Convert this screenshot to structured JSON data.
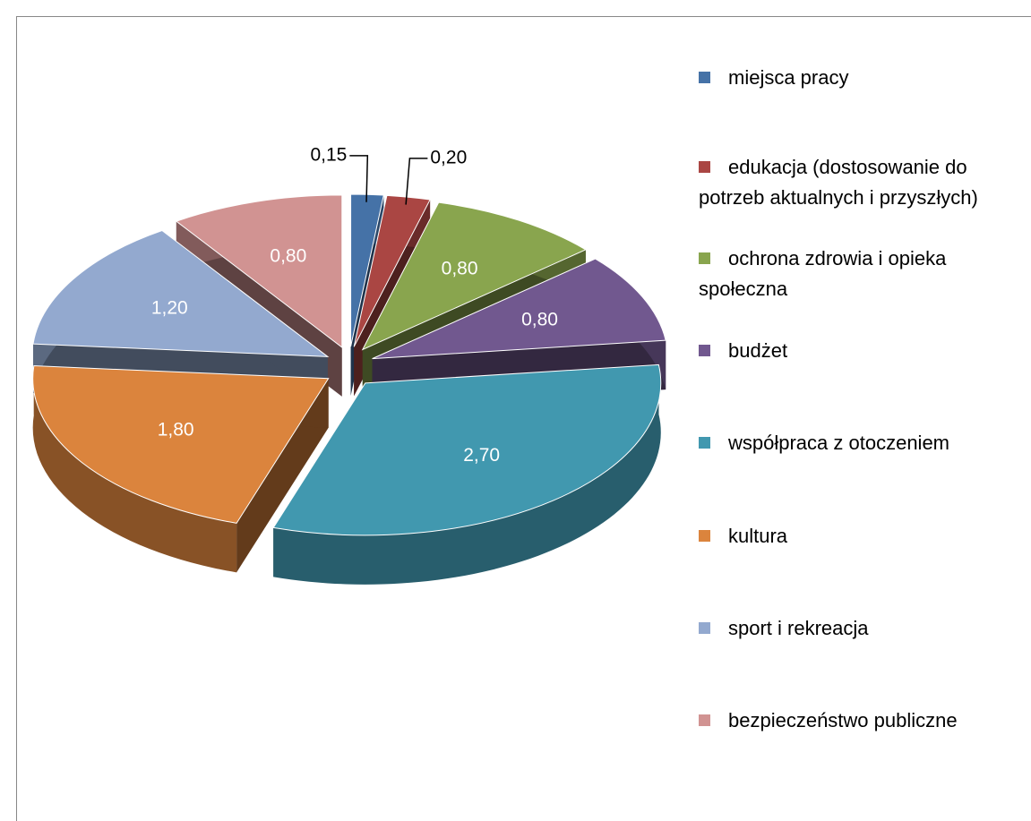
{
  "chart_data": {
    "type": "pie",
    "three_d": true,
    "exploded": true,
    "categories": [
      "miejsca pracy",
      "edukacja (dostosowanie do potrzeb aktualnych i przyszłych)",
      "ochrona zdrowia i opieka społeczna",
      "budżet",
      "współpraca z otoczeniem",
      "kultura",
      "sport i rekreacja",
      "bezpieczeństwo publiczne"
    ],
    "values": [
      0.15,
      0.2,
      0.8,
      0.8,
      2.7,
      1.8,
      1.2,
      0.8
    ],
    "value_labels": [
      "0,15",
      "0,20",
      "0,80",
      "0,80",
      "2,70",
      "1,80",
      "1,20",
      "0,80"
    ],
    "colors": [
      "#4572a7",
      "#aa4643",
      "#89a54e",
      "#71588f",
      "#4198af",
      "#db843d",
      "#93a9cf",
      "#d19392"
    ],
    "legend": "right"
  }
}
